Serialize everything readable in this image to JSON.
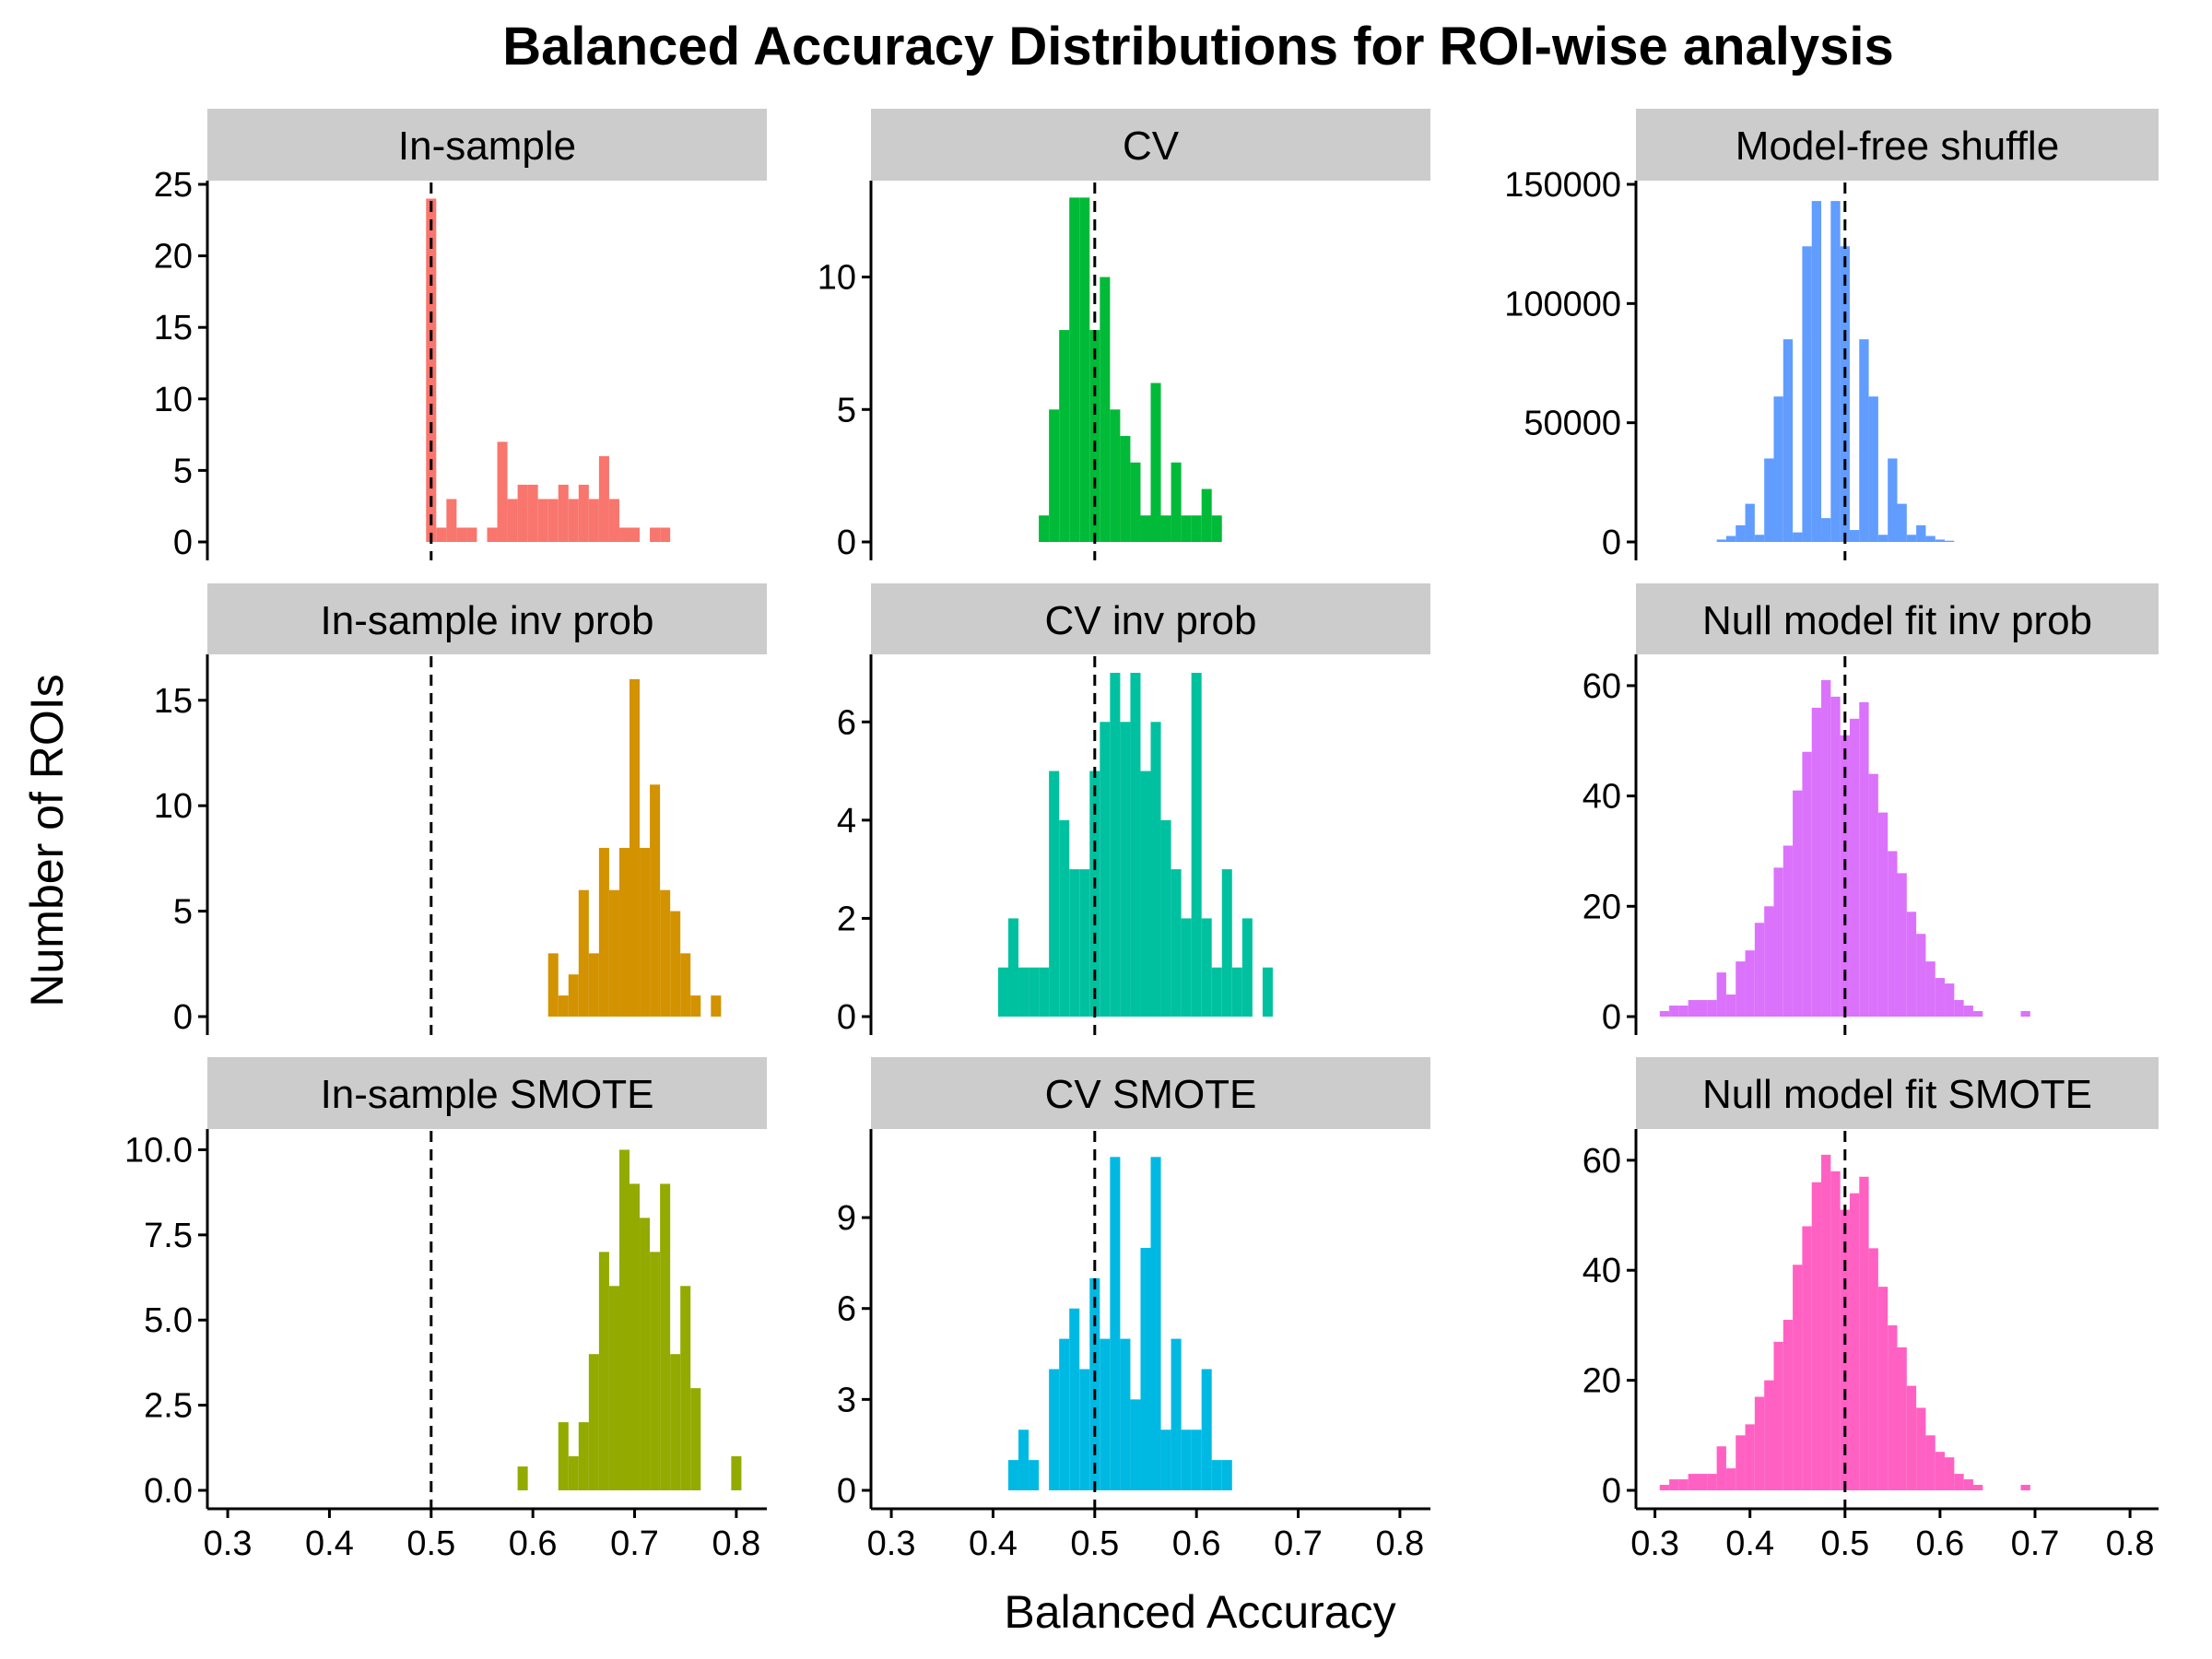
{
  "chart_data": {
    "type": "histogram-facets",
    "title": "Balanced Accuracy Distributions for ROI-wise analysis",
    "xlabel": "Balanced Accuracy",
    "ylabel": "Number of ROIs",
    "xlim": [
      0.28,
      0.83
    ],
    "x_ticks": [
      0.3,
      0.4,
      0.5,
      0.6,
      0.7,
      0.8
    ],
    "x_tick_labels": [
      "0.3",
      "0.4",
      "0.5",
      "0.6",
      "0.7",
      "0.8"
    ],
    "reference_line_x": 0.5,
    "bin_width": 0.01,
    "facets": [
      {
        "name": "In-sample",
        "color": "#F8766D",
        "ylim": [
          0,
          25
        ],
        "y_ticks": [
          0,
          5,
          10,
          15,
          20,
          25
        ],
        "bins": [
          [
            0.5,
            24
          ],
          [
            0.51,
            1
          ],
          [
            0.52,
            3
          ],
          [
            0.53,
            1
          ],
          [
            0.54,
            1
          ],
          [
            0.56,
            1
          ],
          [
            0.57,
            7
          ],
          [
            0.58,
            3
          ],
          [
            0.59,
            4
          ],
          [
            0.6,
            4
          ],
          [
            0.61,
            3
          ],
          [
            0.62,
            3
          ],
          [
            0.63,
            4
          ],
          [
            0.64,
            3
          ],
          [
            0.65,
            4
          ],
          [
            0.66,
            3
          ],
          [
            0.67,
            6
          ],
          [
            0.68,
            3
          ],
          [
            0.69,
            1
          ],
          [
            0.7,
            1
          ],
          [
            0.72,
            1
          ],
          [
            0.73,
            1
          ]
        ]
      },
      {
        "name": "CV",
        "color": "#00BA38",
        "ylim": [
          0,
          13.5
        ],
        "y_ticks": [
          0,
          5,
          10
        ],
        "bins": [
          [
            0.45,
            1
          ],
          [
            0.46,
            5
          ],
          [
            0.47,
            8
          ],
          [
            0.48,
            13
          ],
          [
            0.49,
            13
          ],
          [
            0.5,
            8
          ],
          [
            0.51,
            10
          ],
          [
            0.52,
            5
          ],
          [
            0.53,
            4
          ],
          [
            0.54,
            3
          ],
          [
            0.55,
            1
          ],
          [
            0.56,
            6
          ],
          [
            0.57,
            1
          ],
          [
            0.58,
            3
          ],
          [
            0.59,
            1
          ],
          [
            0.6,
            1
          ],
          [
            0.61,
            2
          ],
          [
            0.62,
            1
          ]
        ]
      },
      {
        "name": "Model-free shuffle",
        "color": "#619CFF",
        "ylim": [
          0,
          150000
        ],
        "y_ticks": [
          0,
          50000,
          100000,
          150000
        ],
        "bins": [
          [
            0.37,
            1000
          ],
          [
            0.38,
            2500
          ],
          [
            0.39,
            7000
          ],
          [
            0.4,
            16000
          ],
          [
            0.41,
            3000
          ],
          [
            0.42,
            35000
          ],
          [
            0.43,
            61000
          ],
          [
            0.44,
            85000
          ],
          [
            0.45,
            4000
          ],
          [
            0.46,
            124000
          ],
          [
            0.47,
            143000
          ],
          [
            0.48,
            10000
          ],
          [
            0.49,
            143000
          ],
          [
            0.5,
            124000
          ],
          [
            0.51,
            5000
          ],
          [
            0.52,
            85000
          ],
          [
            0.53,
            61000
          ],
          [
            0.54,
            3000
          ],
          [
            0.55,
            35000
          ],
          [
            0.56,
            16000
          ],
          [
            0.57,
            3000
          ],
          [
            0.58,
            7000
          ],
          [
            0.59,
            2500
          ],
          [
            0.6,
            1000
          ],
          [
            0.61,
            500
          ]
        ]
      },
      {
        "name": "In-sample inv prob",
        "color": "#D39200",
        "ylim": [
          0,
          17
        ],
        "y_ticks": [
          0,
          5,
          10,
          15
        ],
        "bins": [
          [
            0.62,
            3
          ],
          [
            0.63,
            1
          ],
          [
            0.64,
            2
          ],
          [
            0.65,
            6
          ],
          [
            0.66,
            3
          ],
          [
            0.67,
            8
          ],
          [
            0.68,
            6
          ],
          [
            0.69,
            8
          ],
          [
            0.7,
            16
          ],
          [
            0.71,
            8
          ],
          [
            0.72,
            11
          ],
          [
            0.73,
            6
          ],
          [
            0.74,
            5
          ],
          [
            0.75,
            3
          ],
          [
            0.76,
            1
          ],
          [
            0.78,
            1
          ]
        ]
      },
      {
        "name": "CV inv prob",
        "color": "#00C19F",
        "ylim": [
          0,
          7.3
        ],
        "y_ticks": [
          0,
          2,
          4,
          6
        ],
        "bins": [
          [
            0.41,
            1
          ],
          [
            0.42,
            2
          ],
          [
            0.43,
            1
          ],
          [
            0.44,
            1
          ],
          [
            0.45,
            1
          ],
          [
            0.46,
            5
          ],
          [
            0.47,
            4
          ],
          [
            0.48,
            3
          ],
          [
            0.49,
            3
          ],
          [
            0.5,
            5
          ],
          [
            0.51,
            6
          ],
          [
            0.52,
            7
          ],
          [
            0.53,
            6
          ],
          [
            0.54,
            7
          ],
          [
            0.55,
            5
          ],
          [
            0.56,
            6
          ],
          [
            0.57,
            4
          ],
          [
            0.58,
            3
          ],
          [
            0.59,
            2
          ],
          [
            0.6,
            7
          ],
          [
            0.61,
            2
          ],
          [
            0.62,
            1
          ],
          [
            0.63,
            3
          ],
          [
            0.64,
            1
          ],
          [
            0.65,
            2
          ],
          [
            0.67,
            1
          ]
        ]
      },
      {
        "name": "Null model fit inv prob",
        "color": "#DB72FB",
        "ylim": [
          0,
          65
        ],
        "y_ticks": [
          0,
          20,
          40,
          60
        ],
        "bins": [
          [
            0.31,
            1
          ],
          [
            0.32,
            2
          ],
          [
            0.33,
            2
          ],
          [
            0.34,
            3
          ],
          [
            0.35,
            3
          ],
          [
            0.36,
            3
          ],
          [
            0.37,
            8
          ],
          [
            0.38,
            4
          ],
          [
            0.39,
            10
          ],
          [
            0.4,
            12
          ],
          [
            0.41,
            17
          ],
          [
            0.42,
            20
          ],
          [
            0.43,
            27
          ],
          [
            0.44,
            31
          ],
          [
            0.45,
            41
          ],
          [
            0.46,
            48
          ],
          [
            0.47,
            56
          ],
          [
            0.48,
            61
          ],
          [
            0.49,
            58
          ],
          [
            0.5,
            51
          ],
          [
            0.51,
            54
          ],
          [
            0.52,
            57
          ],
          [
            0.53,
            44
          ],
          [
            0.54,
            37
          ],
          [
            0.55,
            30
          ],
          [
            0.56,
            26
          ],
          [
            0.57,
            19
          ],
          [
            0.58,
            15
          ],
          [
            0.59,
            10
          ],
          [
            0.6,
            7
          ],
          [
            0.61,
            6
          ],
          [
            0.62,
            3
          ],
          [
            0.63,
            2
          ],
          [
            0.64,
            1
          ],
          [
            0.69,
            1
          ]
        ]
      },
      {
        "name": "In-sample SMOTE",
        "color": "#93AA00",
        "ylim": [
          0,
          10.5
        ],
        "y_ticks": [
          0,
          2.5,
          5.0,
          7.5,
          10.0
        ],
        "y_tick_labels": [
          "0.0",
          "2.5",
          "5.0",
          "7.5",
          "10.0"
        ],
        "bins": [
          [
            0.59,
            0.7
          ],
          [
            0.63,
            2
          ],
          [
            0.64,
            1
          ],
          [
            0.65,
            2
          ],
          [
            0.66,
            4
          ],
          [
            0.67,
            7
          ],
          [
            0.68,
            6
          ],
          [
            0.69,
            10
          ],
          [
            0.7,
            9
          ],
          [
            0.71,
            8
          ],
          [
            0.72,
            7
          ],
          [
            0.73,
            9
          ],
          [
            0.74,
            4
          ],
          [
            0.75,
            6
          ],
          [
            0.76,
            3
          ],
          [
            0.8,
            1
          ]
        ]
      },
      {
        "name": "CV SMOTE",
        "color": "#00B9E3",
        "ylim": [
          0,
          11.8
        ],
        "y_ticks": [
          0,
          3,
          6,
          9
        ],
        "bins": [
          [
            0.42,
            1
          ],
          [
            0.43,
            2
          ],
          [
            0.44,
            1
          ],
          [
            0.46,
            4
          ],
          [
            0.47,
            5
          ],
          [
            0.48,
            6
          ],
          [
            0.49,
            4
          ],
          [
            0.5,
            7
          ],
          [
            0.51,
            5
          ],
          [
            0.52,
            11
          ],
          [
            0.53,
            5
          ],
          [
            0.54,
            3
          ],
          [
            0.55,
            8
          ],
          [
            0.56,
            11
          ],
          [
            0.57,
            2
          ],
          [
            0.58,
            5
          ],
          [
            0.59,
            2
          ],
          [
            0.6,
            2
          ],
          [
            0.61,
            4
          ],
          [
            0.62,
            1
          ],
          [
            0.63,
            1
          ]
        ]
      },
      {
        "name": "Null model fit SMOTE",
        "color": "#FF61C3",
        "ylim": [
          0,
          65
        ],
        "y_ticks": [
          0,
          20,
          40,
          60
        ],
        "bins": [
          [
            0.31,
            1
          ],
          [
            0.32,
            2
          ],
          [
            0.33,
            2
          ],
          [
            0.34,
            3
          ],
          [
            0.35,
            3
          ],
          [
            0.36,
            3
          ],
          [
            0.37,
            8
          ],
          [
            0.38,
            4
          ],
          [
            0.39,
            10
          ],
          [
            0.4,
            12
          ],
          [
            0.41,
            17
          ],
          [
            0.42,
            20
          ],
          [
            0.43,
            27
          ],
          [
            0.44,
            31
          ],
          [
            0.45,
            41
          ],
          [
            0.46,
            48
          ],
          [
            0.47,
            56
          ],
          [
            0.48,
            61
          ],
          [
            0.49,
            58
          ],
          [
            0.5,
            51
          ],
          [
            0.51,
            54
          ],
          [
            0.52,
            57
          ],
          [
            0.53,
            44
          ],
          [
            0.54,
            37
          ],
          [
            0.55,
            30
          ],
          [
            0.56,
            26
          ],
          [
            0.57,
            19
          ],
          [
            0.58,
            15
          ],
          [
            0.59,
            10
          ],
          [
            0.6,
            7
          ],
          [
            0.61,
            6
          ],
          [
            0.62,
            3
          ],
          [
            0.63,
            2
          ],
          [
            0.64,
            1
          ],
          [
            0.69,
            1
          ]
        ]
      }
    ]
  }
}
